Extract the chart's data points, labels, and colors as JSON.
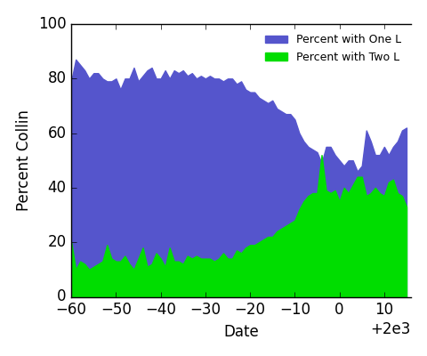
{
  "title": "",
  "xlabel": "Date",
  "ylabel": "Percent Collin",
  "xlim": [
    1940,
    2016
  ],
  "ylim": [
    0,
    100
  ],
  "xticks": [
    1940,
    1950,
    1960,
    1970,
    1980,
    1990,
    2000,
    2010
  ],
  "yticks": [
    0,
    20,
    40,
    60,
    80,
    100
  ],
  "legend_labels": [
    "Percent with One L",
    "Percent with Two L"
  ],
  "color_one_l": "#5555cc",
  "color_two_l": "#00dd00",
  "years": [
    1940,
    1941,
    1942,
    1943,
    1944,
    1945,
    1946,
    1947,
    1948,
    1949,
    1950,
    1951,
    1952,
    1953,
    1954,
    1955,
    1956,
    1957,
    1958,
    1959,
    1960,
    1961,
    1962,
    1963,
    1964,
    1965,
    1966,
    1967,
    1968,
    1969,
    1970,
    1971,
    1972,
    1973,
    1974,
    1975,
    1976,
    1977,
    1978,
    1979,
    1980,
    1981,
    1982,
    1983,
    1984,
    1985,
    1986,
    1987,
    1988,
    1989,
    1990,
    1991,
    1992,
    1993,
    1994,
    1995,
    1996,
    1997,
    1998,
    1999,
    2000,
    2001,
    2002,
    2003,
    2004,
    2005,
    2006,
    2007,
    2008,
    2009,
    2010,
    2011,
    2012,
    2013,
    2014,
    2015
  ],
  "pct_two_l": [
    20,
    10,
    13,
    12,
    10,
    11,
    12,
    13,
    19,
    14,
    13,
    13,
    15,
    12,
    10,
    14,
    18,
    11,
    12,
    16,
    14,
    11,
    18,
    13,
    13,
    12,
    15,
    14,
    15,
    14,
    14,
    14,
    13,
    14,
    16,
    14,
    14,
    17,
    16,
    18,
    19,
    19,
    20,
    21,
    22,
    22,
    24,
    25,
    26,
    27,
    28,
    32,
    35,
    37,
    38,
    38,
    52,
    39,
    38,
    39,
    35,
    40,
    38,
    41,
    44,
    44,
    37,
    38,
    40,
    38,
    37,
    42,
    43,
    38,
    37,
    33
  ],
  "pct_one_l": [
    79,
    87,
    85,
    83,
    80,
    82,
    82,
    80,
    79,
    79,
    80,
    76,
    80,
    80,
    84,
    79,
    81,
    83,
    84,
    80,
    80,
    83,
    80,
    83,
    82,
    83,
    81,
    82,
    80,
    81,
    80,
    81,
    80,
    80,
    79,
    80,
    80,
    78,
    79,
    76,
    75,
    75,
    73,
    72,
    71,
    72,
    69,
    68,
    67,
    67,
    65,
    60,
    57,
    55,
    54,
    53,
    49,
    55,
    55,
    52,
    50,
    48,
    50,
    50,
    46,
    48,
    61,
    57,
    52,
    52,
    55,
    52,
    55,
    57,
    61,
    62
  ]
}
